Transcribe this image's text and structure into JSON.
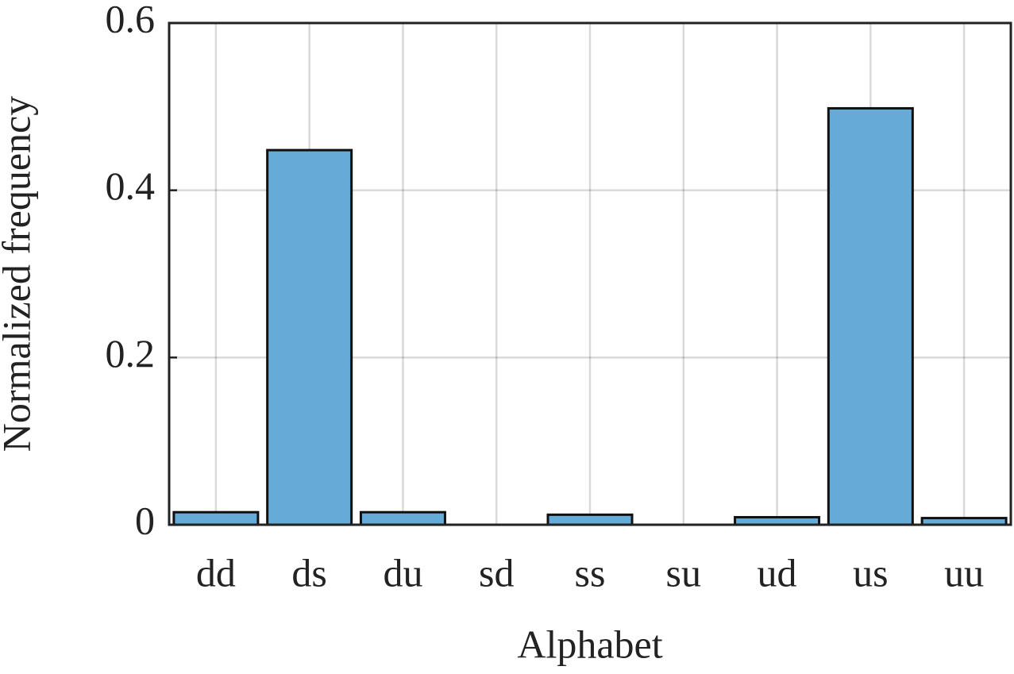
{
  "chart_data": {
    "type": "bar",
    "x_label": "Alphabet",
    "y_label": "Normalized frequency",
    "categories": [
      "dd",
      "ds",
      "du",
      "sd",
      "ss",
      "su",
      "ud",
      "us",
      "uu"
    ],
    "values": [
      0.015,
      0.448,
      0.015,
      0,
      0.012,
      0,
      0.009,
      0.498,
      0.008
    ],
    "color": "#66aad7",
    "edge_color": "#111111",
    "ylim": [
      0,
      0.6
    ],
    "yticks": [
      0,
      0.2,
      0.4,
      0.6
    ],
    "grid": true
  }
}
